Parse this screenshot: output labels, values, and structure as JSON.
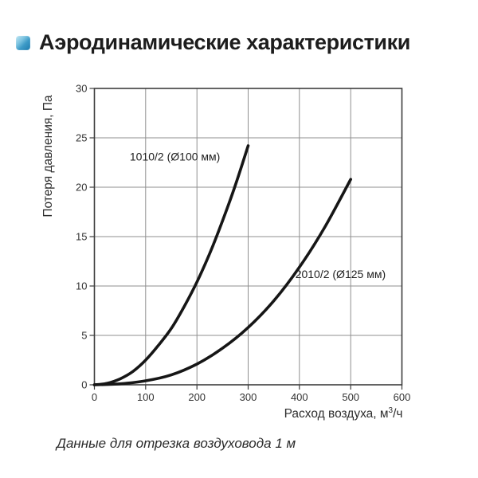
{
  "page": {
    "background": "#ffffff"
  },
  "header": {
    "icon": "blue-gradient-square-bullet",
    "title": "Аэродинамические характеристики",
    "accent_color": "#2e8fc0"
  },
  "chart_data": {
    "type": "line",
    "title": "",
    "xlabel": "Расход воздуха, м³/ч",
    "xlabel_base": "Расход воздуха, м",
    "xlabel_sup": "3",
    "xlabel_tail": "/ч",
    "ylabel": "Потеря давления, Па",
    "xlim": [
      0,
      600
    ],
    "ylim": [
      0,
      30
    ],
    "x_ticks": [
      0,
      100,
      200,
      300,
      400,
      500,
      600
    ],
    "y_ticks": [
      0,
      5,
      10,
      15,
      20,
      25,
      30
    ],
    "grid": true,
    "legend_position": "inline-labels",
    "colors": {
      "curve": "#161616",
      "grid": "#8f8f8f",
      "border": "#3d3d3d",
      "tick_text": "#333333"
    },
    "series": [
      {
        "name": "1010/2 (Ø100 мм)",
        "x": [
          0,
          25,
          50,
          75,
          100,
          125,
          150,
          175,
          200,
          225,
          250,
          275,
          300
        ],
        "y": [
          0,
          0.15,
          0.6,
          1.35,
          2.5,
          4.0,
          5.7,
          7.9,
          10.4,
          13.3,
          16.6,
          20.2,
          24.2
        ],
        "label_pos": {
          "x": 69,
          "y": 22.7
        }
      },
      {
        "name": "2010/2 (Ø125 мм)",
        "x": [
          0,
          50,
          100,
          150,
          200,
          250,
          300,
          350,
          400,
          450,
          500
        ],
        "y": [
          0,
          0.1,
          0.4,
          1.0,
          2.1,
          3.7,
          5.8,
          8.5,
          11.9,
          16.0,
          20.8
        ],
        "label_pos": {
          "x": 392,
          "y": 10.8
        }
      }
    ]
  },
  "caption": "Данные для отрезка воздуховода 1 м"
}
